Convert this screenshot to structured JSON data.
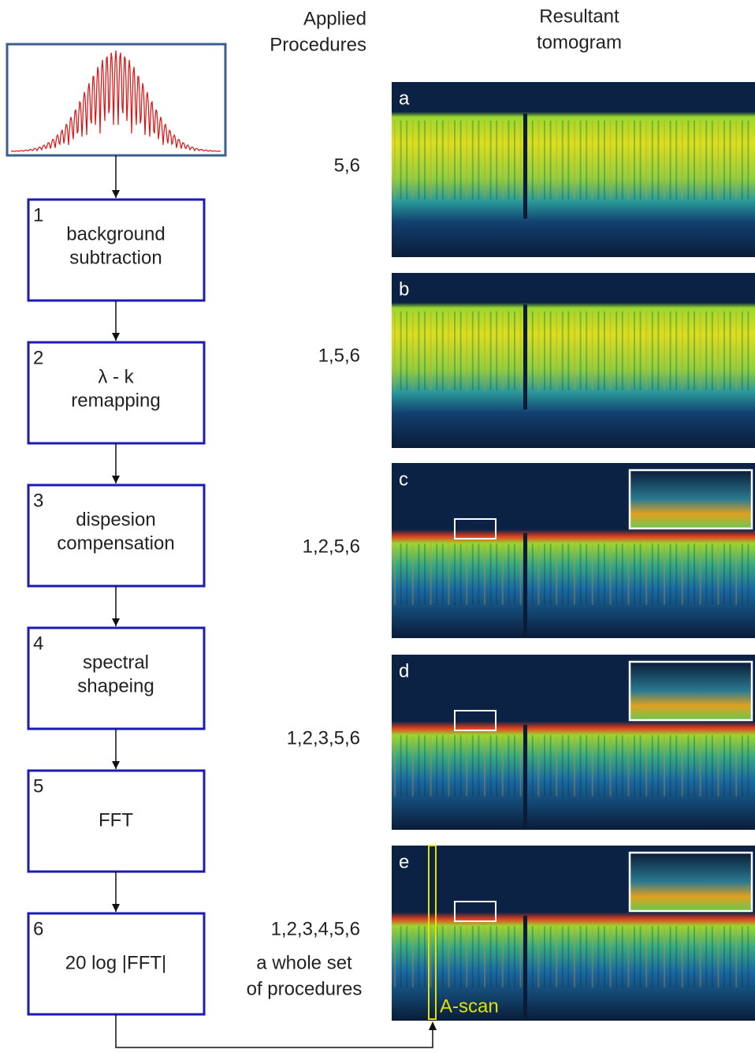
{
  "header": {
    "applied_procedures": [
      "Applied",
      "Procedures"
    ],
    "resultant_tomogram": [
      "Resultant",
      "tomogram"
    ]
  },
  "steps": [
    {
      "number": "1",
      "lines": [
        "background",
        "subtraction"
      ]
    },
    {
      "number": "2",
      "lines": [
        "λ - k",
        "remapping"
      ]
    },
    {
      "number": "3",
      "lines": [
        "dispesion",
        "compensation"
      ]
    },
    {
      "number": "4",
      "lines": [
        "spectral",
        "shapeing"
      ]
    },
    {
      "number": "5",
      "lines": [
        "FFT"
      ]
    },
    {
      "number": "6",
      "lines": [
        "20 log |FFT|"
      ]
    }
  ],
  "panels": [
    {
      "letter": "a",
      "procedures": "5,6"
    },
    {
      "letter": "b",
      "procedures": "1,5,6"
    },
    {
      "letter": "c",
      "procedures": "1,2,5,6"
    },
    {
      "letter": "d",
      "procedures": "1,2,3,5,6"
    },
    {
      "letter": "e",
      "procedures": "1,2,3,4,5,6"
    }
  ],
  "note": [
    "a whole set",
    "of procedures"
  ],
  "a_scan_label": "A-scan"
}
